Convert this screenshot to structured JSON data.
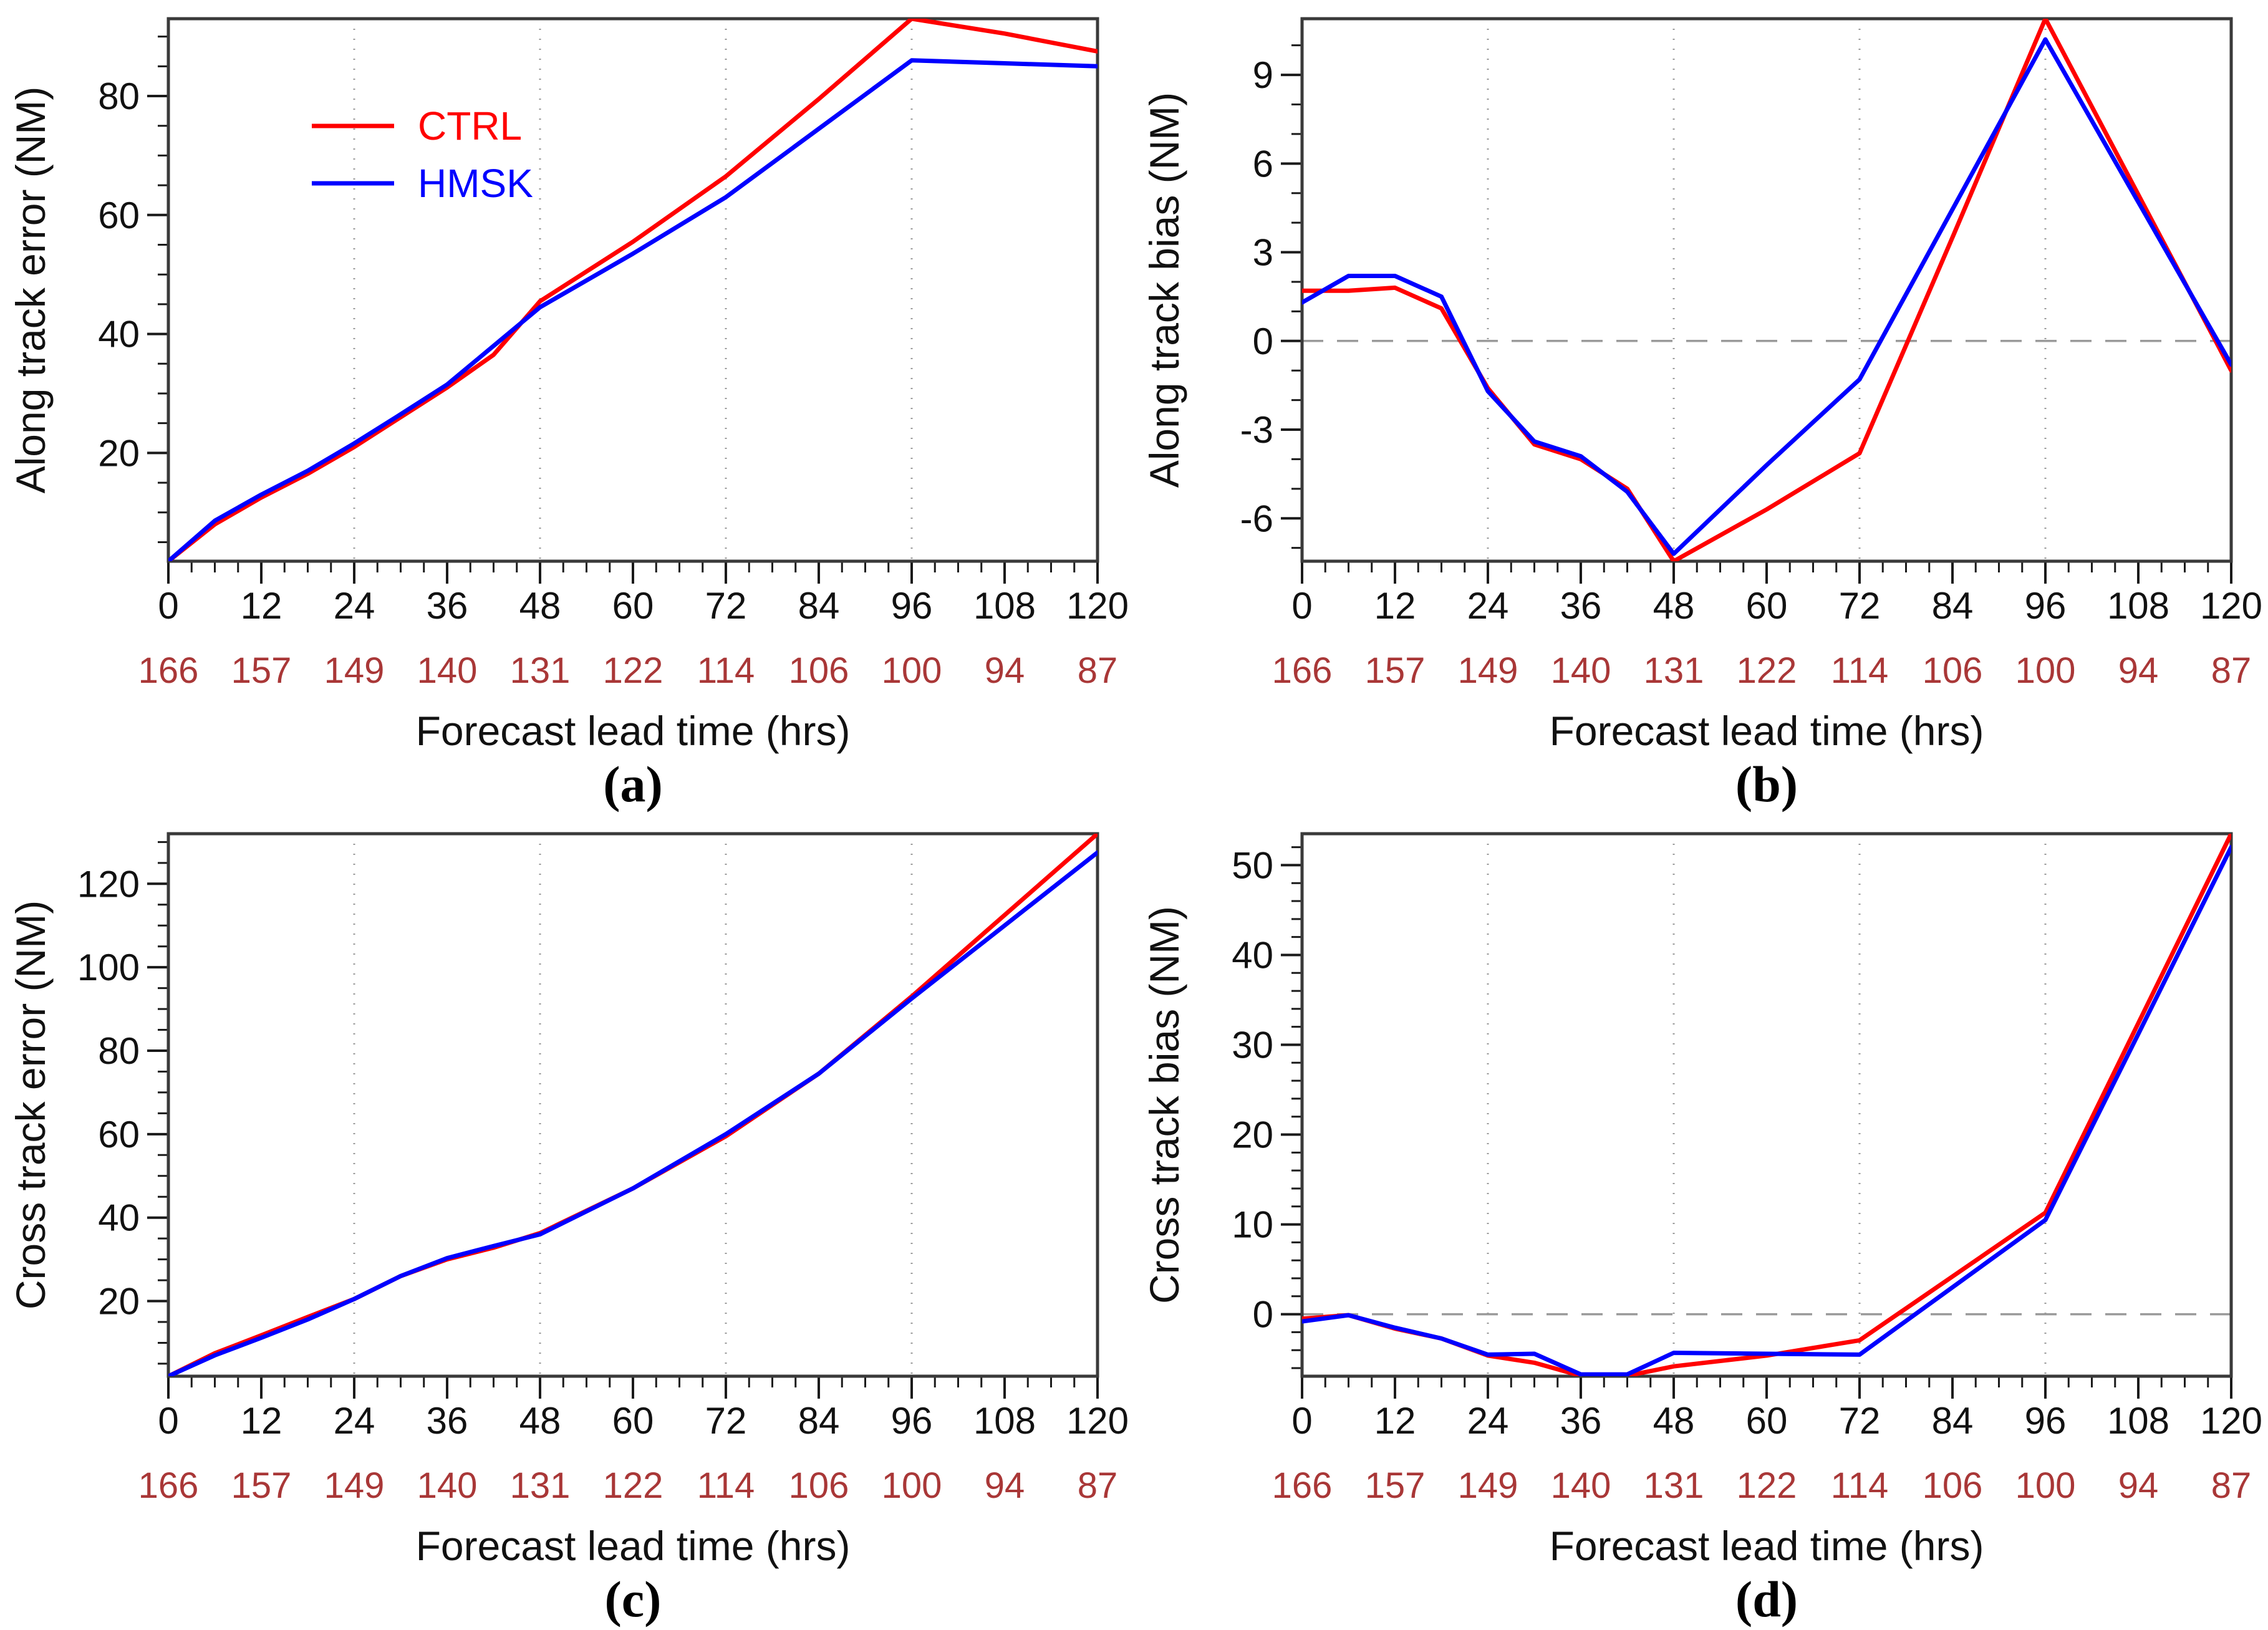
{
  "figure": {
    "background": "#ffffff",
    "colors": {
      "ctrl": "#ff0000",
      "hmsk": "#0000ff",
      "secondary_axis_labels": "#a93737",
      "frame": "#3a3a3a",
      "tick": "#1a1a1a",
      "grid": "#9a9a9a",
      "text": "#111111"
    },
    "legend": {
      "position": "upper-left-panel-a",
      "items": [
        {
          "label": "CTRL",
          "color": "#ff0000"
        },
        {
          "label": "HMSK",
          "color": "#0000ff"
        }
      ]
    }
  },
  "chart_data": [
    {
      "type": "line",
      "panel": "a",
      "caption": "(a)",
      "xlabel": "Forecast lead time (hrs)",
      "ylabel": "Along track error (NM)",
      "xlim": [
        0,
        120
      ],
      "x_major_ticks": [
        0,
        12,
        24,
        36,
        48,
        60,
        72,
        84,
        96,
        108,
        120
      ],
      "x_minor_step": 3,
      "secondary_x_labels": [
        "166",
        "157",
        "149",
        "140",
        "131",
        "122",
        "114",
        "106",
        "100",
        "94",
        "87"
      ],
      "ylim": [
        1.8,
        93
      ],
      "y_major_ticks": [
        20,
        40,
        60,
        80
      ],
      "y_minor_step": 5,
      "vgrid": [
        24,
        48,
        72,
        96
      ],
      "zero_line": false,
      "legend": true,
      "grid": "vertical-dotted",
      "x": [
        0,
        6,
        12,
        18,
        24,
        30,
        36,
        42,
        48,
        60,
        72,
        84,
        96,
        108,
        120
      ],
      "series": [
        {
          "name": "CTRL",
          "color": "#ff0000",
          "values": [
            1.8,
            8,
            12.5,
            16.5,
            21,
            26,
            31,
            36.5,
            45.5,
            55.5,
            66.5,
            79.5,
            93,
            90.5,
            87.5
          ]
        },
        {
          "name": "HMSK",
          "color": "#0000ff",
          "values": [
            1.8,
            8.6,
            13,
            17,
            21.6,
            26.5,
            31.5,
            38,
            44.5,
            53.5,
            63,
            74.5,
            86,
            85.5,
            85
          ]
        }
      ]
    },
    {
      "type": "line",
      "panel": "b",
      "caption": "(b)",
      "xlabel": "Forecast lead time (hrs)",
      "ylabel": "Along track bias (NM)",
      "xlim": [
        0,
        120
      ],
      "x_major_ticks": [
        0,
        12,
        24,
        36,
        48,
        60,
        72,
        84,
        96,
        108,
        120
      ],
      "x_minor_step": 3,
      "secondary_x_labels": [
        "166",
        "157",
        "149",
        "140",
        "131",
        "122",
        "114",
        "106",
        "100",
        "94",
        "87"
      ],
      "ylim": [
        -7.45,
        10.9
      ],
      "y_major_ticks": [
        -6,
        -3,
        0,
        3,
        6,
        9
      ],
      "y_minor_step": 1,
      "vgrid": [
        24,
        48,
        72,
        96
      ],
      "zero_line": true,
      "legend": false,
      "grid": "vertical-dotted",
      "x": [
        0,
        6,
        12,
        18,
        24,
        30,
        36,
        42,
        48,
        60,
        72,
        84,
        96,
        108,
        120
      ],
      "series": [
        {
          "name": "CTRL",
          "color": "#ff0000",
          "values": [
            1.7,
            1.7,
            1.8,
            1.1,
            -1.6,
            -3.5,
            -4,
            -5,
            -7.45,
            -5.7,
            -3.8,
            3.5,
            10.9,
            4.95,
            -1
          ]
        },
        {
          "name": "HMSK",
          "color": "#0000ff",
          "values": [
            1.3,
            2.2,
            2.2,
            1.5,
            -1.7,
            -3.4,
            -3.9,
            -5.1,
            -7.2,
            -4.2,
            -1.3,
            4.45,
            10.2,
            4.7,
            -0.8
          ]
        }
      ]
    },
    {
      "type": "line",
      "panel": "c",
      "caption": "(c)",
      "xlabel": "Forecast lead time (hrs)",
      "ylabel": "Cross track error (NM)",
      "xlim": [
        0,
        120
      ],
      "x_major_ticks": [
        0,
        12,
        24,
        36,
        48,
        60,
        72,
        84,
        96,
        108,
        120
      ],
      "x_minor_step": 3,
      "secondary_x_labels": [
        "166",
        "157",
        "149",
        "140",
        "131",
        "122",
        "114",
        "106",
        "100",
        "94",
        "87"
      ],
      "ylim": [
        2,
        132
      ],
      "y_major_ticks": [
        20,
        40,
        60,
        80,
        100,
        120
      ],
      "y_minor_step": 5,
      "vgrid": [
        24,
        48,
        72,
        96
      ],
      "zero_line": false,
      "legend": false,
      "grid": "vertical-dotted",
      "x": [
        0,
        6,
        12,
        18,
        24,
        30,
        36,
        42,
        48,
        60,
        72,
        84,
        96,
        108,
        120
      ],
      "series": [
        {
          "name": "CTRL",
          "color": "#ff0000",
          "values": [
            2,
            7.5,
            11.8,
            16.2,
            20.5,
            26,
            30,
            32.8,
            36.3,
            47,
            59.5,
            74.5,
            93,
            112.5,
            132
          ]
        },
        {
          "name": "HMSK",
          "color": "#0000ff",
          "values": [
            2,
            7,
            11.2,
            15.6,
            20.5,
            26,
            30.3,
            33.2,
            36,
            47,
            60,
            74.5,
            92.5,
            110,
            127.5
          ]
        }
      ]
    },
    {
      "type": "line",
      "panel": "d",
      "caption": "(d)",
      "xlabel": "Forecast lead time (hrs)",
      "ylabel": "Cross track bias (NM)",
      "xlim": [
        0,
        120
      ],
      "x_major_ticks": [
        0,
        12,
        24,
        36,
        48,
        60,
        72,
        84,
        96,
        108,
        120
      ],
      "x_minor_step": 3,
      "secondary_x_labels": [
        "166",
        "157",
        "149",
        "140",
        "131",
        "122",
        "114",
        "106",
        "100",
        "94",
        "87"
      ],
      "ylim": [
        -6.9,
        53.5
      ],
      "y_major_ticks": [
        0,
        10,
        20,
        30,
        40,
        50
      ],
      "y_minor_step": 2,
      "vgrid": [
        24,
        48,
        72,
        96
      ],
      "zero_line": true,
      "legend": false,
      "grid": "vertical-dotted",
      "x": [
        0,
        6,
        12,
        18,
        24,
        30,
        36,
        42,
        48,
        60,
        72,
        84,
        96,
        108,
        120
      ],
      "series": [
        {
          "name": "CTRL",
          "color": "#ff0000",
          "values": [
            -0.5,
            -0.1,
            -1.6,
            -2.7,
            -4.6,
            -5.4,
            -6.85,
            -6.85,
            -5.8,
            -4.6,
            -2.9,
            4.2,
            11.3,
            32.4,
            53.5
          ]
        },
        {
          "name": "HMSK",
          "color": "#0000ff",
          "values": [
            -0.8,
            -0.1,
            -1.5,
            -2.7,
            -4.5,
            -4.4,
            -6.7,
            -6.7,
            -4.3,
            -4.4,
            -4.5,
            3,
            10.5,
            31.2,
            52
          ]
        }
      ]
    }
  ]
}
